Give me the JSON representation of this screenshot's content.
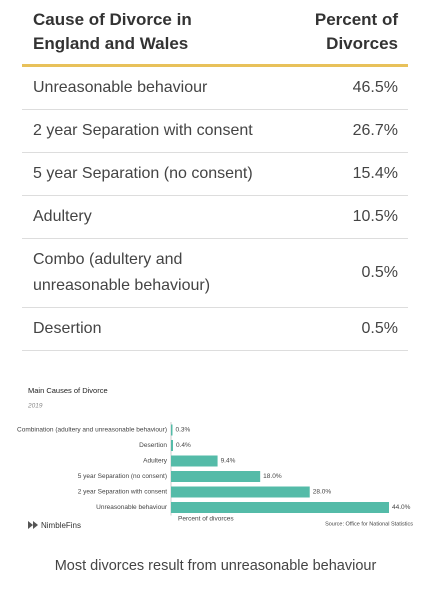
{
  "table": {
    "header": [
      "Cause of Divorce in England and Wales",
      "Percent of Divorces"
    ],
    "rows": [
      [
        "Unreasonable behaviour",
        "46.5%"
      ],
      [
        "2 year Separation with consent",
        "26.7%"
      ],
      [
        "5 year Separation (no consent)",
        "15.4%"
      ],
      [
        "Adultery",
        "10.5%"
      ],
      [
        "Combo (adultery and unreasonable behaviour)",
        "0.5%"
      ],
      [
        "Desertion",
        "0.5%"
      ]
    ]
  },
  "chart_data": {
    "type": "bar",
    "orientation": "horizontal",
    "title": "Main Causes of Divorce",
    "subtitle": "2019",
    "categories": [
      "Combination (adultery and unreasonable behaviour)",
      "Desertion",
      "Adultery",
      "5 year Separation (no consent)",
      "2 year Separation with consent",
      "Unreasonable behaviour"
    ],
    "values": [
      0.3,
      0.4,
      9.4,
      18.0,
      28.0,
      44.0
    ],
    "value_labels": [
      "0.3%",
      "0.4%",
      "9.4%",
      "18.0%",
      "28.0%",
      "44.0%"
    ],
    "color": "#54bba8",
    "xlabel": "Percent of divorces",
    "source": "Source: Office for National Statistics",
    "brand": "NimbleFins"
  },
  "caption": "Most divorces result from unreasonable behaviour"
}
